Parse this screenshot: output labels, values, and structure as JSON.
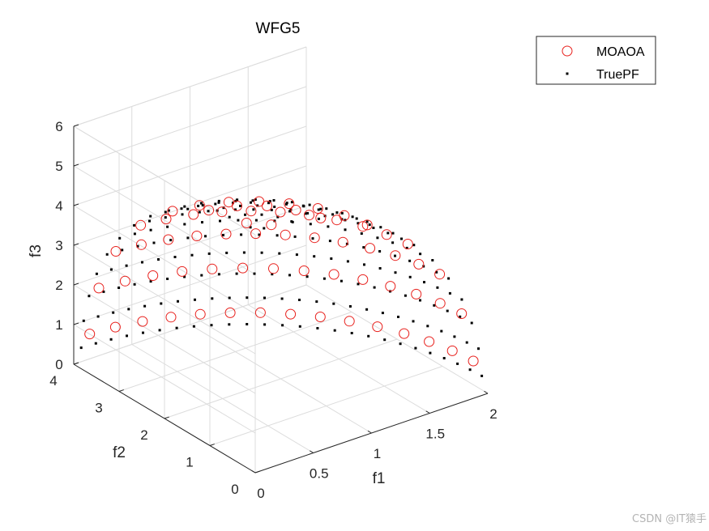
{
  "chart_data": {
    "type": "scatter3d",
    "title": "WFG5",
    "xlabel": "f1",
    "ylabel": "f2",
    "zlabel": "f3",
    "xlim": [
      0,
      2
    ],
    "ylim": [
      0,
      4
    ],
    "zlim": [
      0,
      6
    ],
    "xticks": [
      "0",
      "0.5",
      "1",
      "1.5",
      "2"
    ],
    "yticks": [
      "0",
      "1",
      "2",
      "3",
      "4"
    ],
    "zticks": [
      "0",
      "1",
      "2",
      "3",
      "4",
      "5",
      "6"
    ],
    "grid": true,
    "legend_position": "top-right",
    "surface": {
      "shape": "ellipsoid-octant",
      "f1_max": 2,
      "f2_max": 4,
      "f3_max": 6
    },
    "series": [
      {
        "name": "MOAOA",
        "marker": "circle-open",
        "color": "#e8211d",
        "n_theta": 7,
        "n_phi": 15
      },
      {
        "name": "TruePF",
        "marker": "dot",
        "color": "#000000",
        "n_theta": 13,
        "n_phi": 26
      }
    ]
  },
  "watermark": "CSDN @IT猿手"
}
